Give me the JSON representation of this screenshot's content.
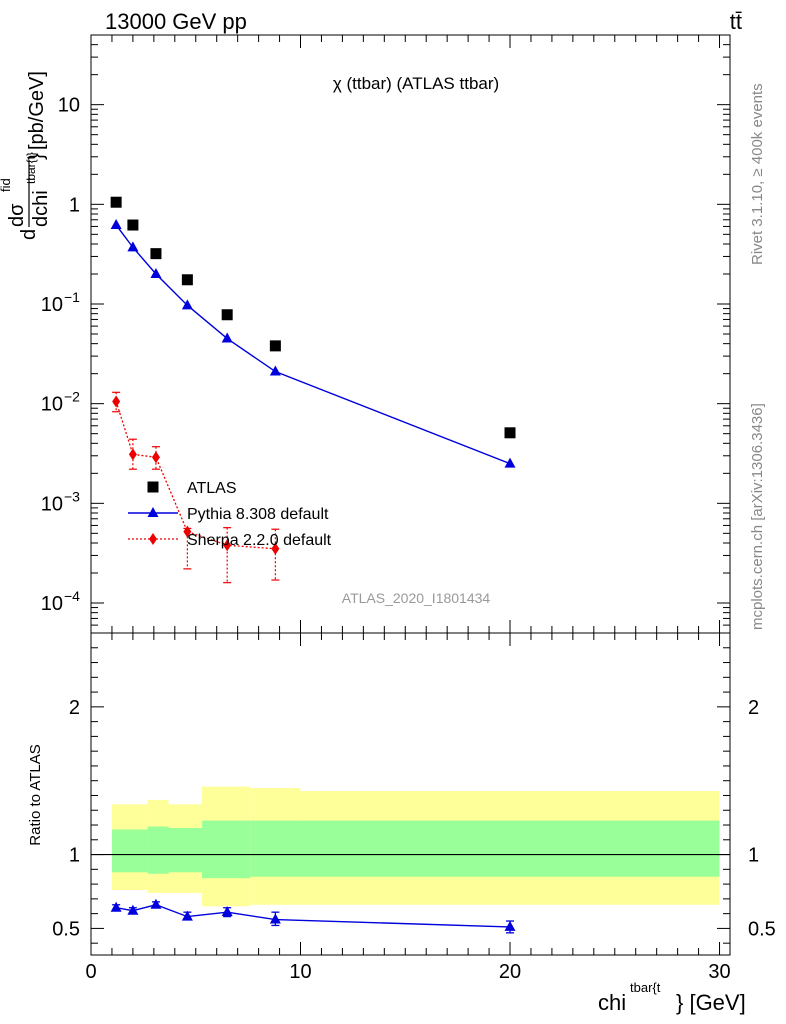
{
  "header": {
    "energy": "13000 GeV pp",
    "process": "tt̄"
  },
  "side": {
    "rivet": "Rivet 3.1.10, ≥ 400k events",
    "mcplots": "mcplots.cern.ch [arXiv:1306.3436]"
  },
  "chart_data": [
    {
      "type": "scatter",
      "title": "χ (ttbar) (ATLAS ttbar)",
      "watermark": "ATLAS_2020_I1801434",
      "ylabel": "dσ^fid / dchi^{tbar{t}} [pb/GeV]",
      "ylabel_parts": {
        "d": "d",
        "sigma": "dσ",
        "fid": "fid",
        "den": "dchi",
        "sup": "tbar{t}",
        "close": "}",
        "unit": "[pb/GeV]"
      },
      "yscale": "log",
      "ylim": [
        5e-05,
        50
      ],
      "xlim": [
        0,
        30.5
      ],
      "y_ticks": [
        {
          "v": 10,
          "label": "10"
        },
        {
          "v": 1,
          "label": "1"
        },
        {
          "v": 0.1,
          "base": "10",
          "exp": "−1"
        },
        {
          "v": 0.01,
          "base": "10",
          "exp": "−2"
        },
        {
          "v": 0.001,
          "base": "10",
          "exp": "−3"
        },
        {
          "v": 0.0001,
          "base": "10",
          "exp": "−4"
        }
      ],
      "legend_position": "left-bottom",
      "series": [
        {
          "name": "ATLAS",
          "marker": "square",
          "color": "#000000",
          "x": [
            1.2,
            2.0,
            3.1,
            4.6,
            6.5,
            8.8,
            20.0
          ],
          "y": [
            1.05,
            0.62,
            0.32,
            0.175,
            0.078,
            0.038,
            0.0051
          ]
        },
        {
          "name": "Pythia 8.308 default",
          "marker": "triangle",
          "color": "#0000dd",
          "x": [
            1.2,
            2.0,
            3.1,
            4.6,
            6.5,
            8.8,
            20.0
          ],
          "y": [
            0.62,
            0.37,
            0.2,
            0.097,
            0.045,
            0.021,
            0.0025
          ]
        },
        {
          "name": "Sherpa 2.2.0 default",
          "marker": "diamond",
          "color": "#ee0000",
          "x": [
            1.2,
            2.0,
            3.1,
            4.6,
            6.5,
            8.8
          ],
          "y": [
            0.0105,
            0.0031,
            0.0029,
            0.00052,
            0.00038,
            0.00035
          ],
          "err_low": [
            0.0083,
            0.0022,
            0.0022,
            0.00022,
            0.00016,
            0.00017
          ],
          "err_high": [
            0.013,
            0.0044,
            0.0037,
            0.00056,
            0.00057,
            0.00055
          ]
        }
      ]
    },
    {
      "type": "line",
      "ylabel": "Ratio to ATLAS",
      "xlabel": "chi^{tbar{t}} [GeV]",
      "xlabel_parts": {
        "main": "chi",
        "sup": "tbar{t",
        "tail": "} [GeV]"
      },
      "xlim": [
        0,
        30.5
      ],
      "ylim": [
        0.32,
        2.5
      ],
      "x_ticks": [
        0,
        10,
        20,
        30
      ],
      "y_ticks": [
        0.5,
        1,
        2
      ],
      "reference_line": 1,
      "bands": {
        "x_edges": [
          1,
          2.7,
          3.7,
          5.3,
          7.6,
          10,
          30
        ],
        "outer": {
          "color": "#ffff99",
          "lo": [
            0.76,
            0.74,
            0.74,
            0.65,
            0.66,
            0.66
          ],
          "hi": [
            1.34,
            1.37,
            1.34,
            1.46,
            1.45,
            1.43
          ]
        },
        "inner": {
          "color": "#99ff99",
          "lo": [
            0.88,
            0.87,
            0.88,
            0.84,
            0.85,
            0.85
          ],
          "hi": [
            1.17,
            1.19,
            1.18,
            1.23,
            1.23,
            1.23
          ]
        }
      },
      "series": [
        {
          "name": "Pythia 8.308 default",
          "color": "#0000dd",
          "x": [
            1.2,
            2.0,
            3.1,
            4.6,
            6.5,
            8.8,
            20.0
          ],
          "y": [
            0.64,
            0.62,
            0.66,
            0.58,
            0.61,
            0.56,
            0.51
          ],
          "err_low": [
            0.62,
            0.6,
            0.64,
            0.56,
            0.58,
            0.52,
            0.47
          ],
          "err_high": [
            0.66,
            0.64,
            0.68,
            0.61,
            0.64,
            0.61,
            0.55
          ]
        }
      ]
    }
  ]
}
